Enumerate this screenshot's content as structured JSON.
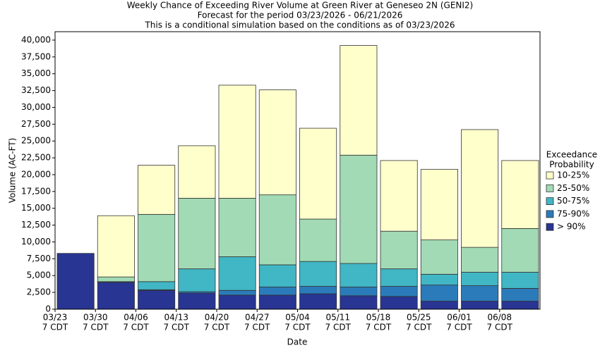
{
  "chart_data": {
    "type": "stacked-bar",
    "title": "Weekly Chance of Exceeding River Volume at Green River at Geneseo 2N (GENI2)",
    "subtitles": [
      "Forecast for the period 03/23/2026 - 06/21/2026",
      "This is a conditional simulation based on the conditions as of 03/23/2026"
    ],
    "y_label": "Volume (AC-FT)",
    "x_label": "Date",
    "categories": [
      "03/23",
      "03/30",
      "04/06",
      "04/13",
      "04/20",
      "04/27",
      "05/04",
      "05/11",
      "05/18",
      "05/25",
      "06/01",
      "06/08"
    ],
    "category_sublabels": [
      "7 CDT",
      "7 CDT",
      "7 CDT",
      "7 CDT",
      "7 CDT",
      "7 CDT",
      "7 CDT",
      "7 CDT",
      "7 CDT",
      "7 CDT",
      "7 CDT",
      "7 CDT"
    ],
    "legend_title": [
      "Exceedance",
      "Probability"
    ],
    "legend_position": "right",
    "series": [
      {
        "name": "> 90%",
        "color": "#283593",
        "values": [
          8300,
          4000,
          2800,
          2400,
          2100,
          2100,
          2300,
          2000,
          1900,
          1200,
          1200,
          1200
        ]
      },
      {
        "name": "75-90%",
        "color": "#2b7bba",
        "values": [
          0,
          100,
          100,
          200,
          700,
          1200,
          1100,
          1300,
          1500,
          2400,
          2300,
          1900
        ]
      },
      {
        "name": "50-75%",
        "color": "#41b6c4",
        "values": [
          0,
          0,
          1200,
          3400,
          5000,
          3300,
          3700,
          3500,
          2600,
          1600,
          2000,
          2400
        ]
      },
      {
        "name": "25-50%",
        "color": "#a1dab4",
        "values": [
          0,
          700,
          10000,
          10500,
          8700,
          10400,
          6300,
          16100,
          5600,
          5100,
          3700,
          6500
        ]
      },
      {
        "name": "10-25%",
        "color": "#ffffcc",
        "values": [
          0,
          9100,
          7300,
          7800,
          16800,
          15600,
          13500,
          16300,
          10500,
          10500,
          17500,
          10100
        ]
      }
    ],
    "ylim": [
      0,
      41250
    ],
    "yticks": [
      0,
      {
        "value": 2500,
        "label": "2,500"
      },
      {
        "value": 5000,
        "label": "5,000"
      },
      {
        "value": 7500,
        "label": "7,500"
      },
      {
        "value": 10000,
        "label": "10,000"
      },
      {
        "value": 12500,
        "label": "12,500"
      },
      {
        "value": 15000,
        "label": "15,000"
      },
      {
        "value": 17500,
        "label": "17,500"
      },
      {
        "value": 20000,
        "label": "20,000"
      },
      {
        "value": 22500,
        "label": "22,500"
      },
      {
        "value": 25000,
        "label": "25,000"
      },
      {
        "value": 27500,
        "label": "27,500"
      },
      {
        "value": 30000,
        "label": "30,000"
      },
      {
        "value": 32500,
        "label": "32,500"
      },
      {
        "value": 35000,
        "label": "35,000"
      },
      {
        "value": 37500,
        "label": "37,500"
      },
      {
        "value": 40000,
        "label": "40,000"
      }
    ],
    "grid": false
  }
}
